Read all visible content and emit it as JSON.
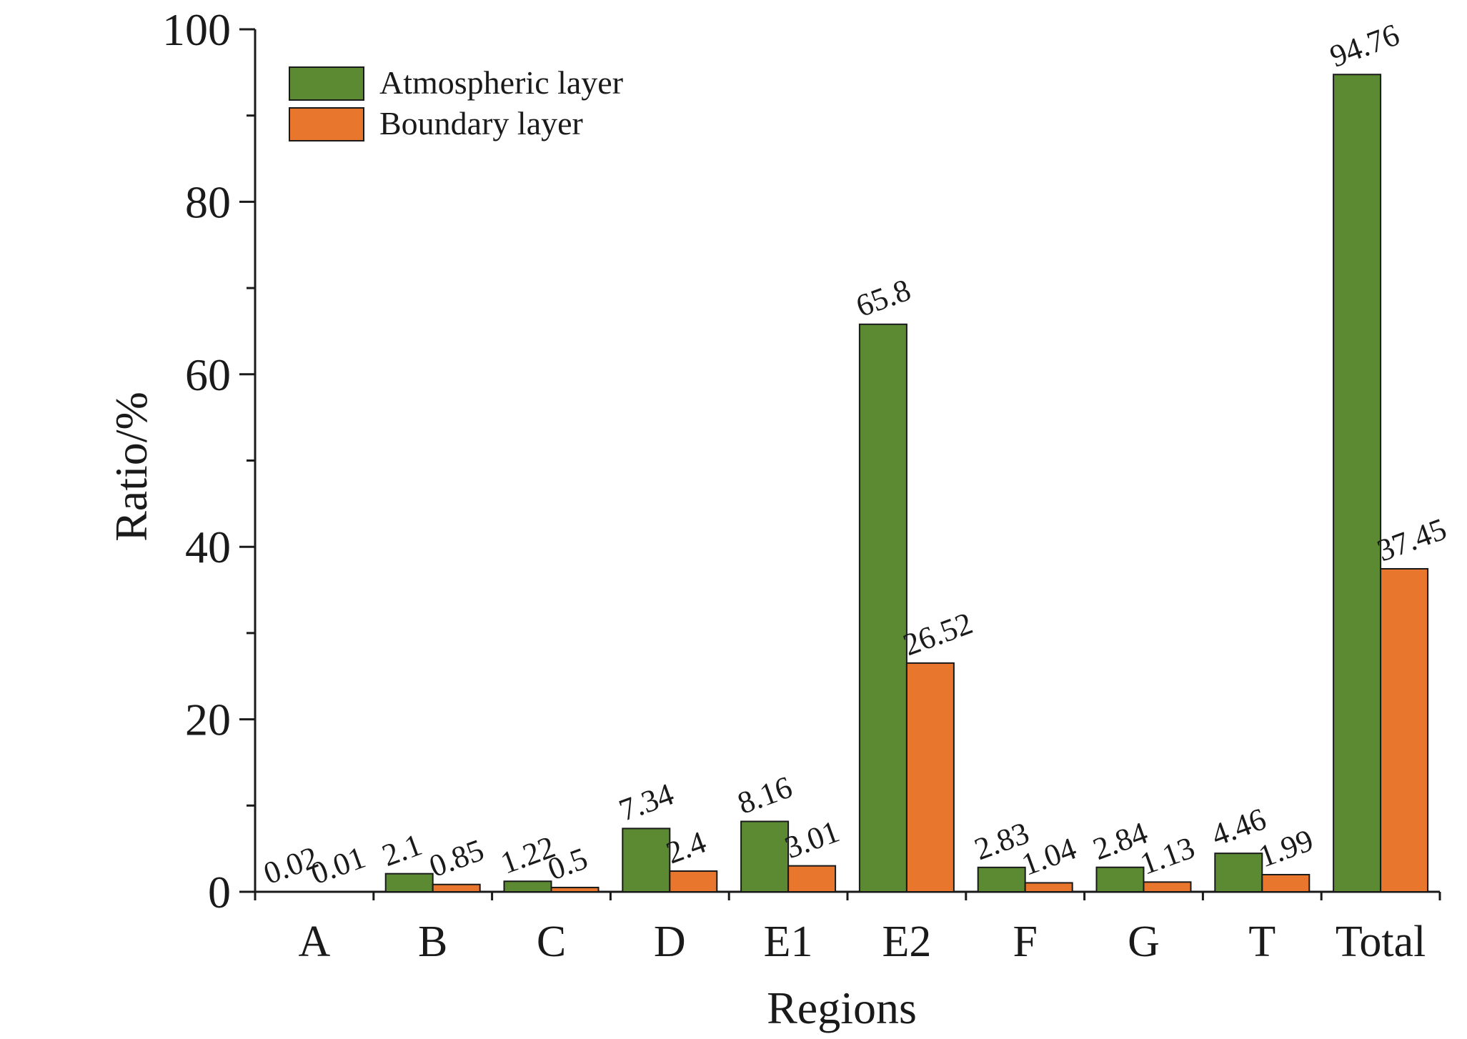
{
  "chart_data": {
    "type": "bar",
    "title": "",
    "xlabel": "Regions",
    "ylabel": "Ratio/%",
    "ylim": [
      0,
      100
    ],
    "yticks": [
      0,
      20,
      40,
      60,
      80,
      100
    ],
    "grid": false,
    "legend_position": "top-left",
    "categories": [
      "A",
      "B",
      "C",
      "D",
      "E1",
      "E2",
      "F",
      "G",
      "T",
      "Total"
    ],
    "series": [
      {
        "name": "Atmospheric layer",
        "color": "#5b8a32",
        "values": [
          0.02,
          2.1,
          1.22,
          7.34,
          8.16,
          65.8,
          2.83,
          2.84,
          4.46,
          94.76
        ],
        "labels": [
          "0.02",
          "2.1",
          "1.22",
          "7.34",
          "8.16",
          "65.8",
          "2.83",
          "2.84",
          "4.46",
          "94.76"
        ]
      },
      {
        "name": "Boundary layer",
        "color": "#e8762d",
        "values": [
          0.01,
          0.85,
          0.5,
          2.4,
          3.01,
          26.52,
          1.04,
          1.13,
          1.99,
          37.45
        ],
        "labels": [
          "0.01",
          "0.85",
          "0.5",
          "2.4",
          "3.01",
          "26.52",
          "1.04",
          "1.13",
          "1.99",
          "37.45"
        ]
      }
    ]
  }
}
